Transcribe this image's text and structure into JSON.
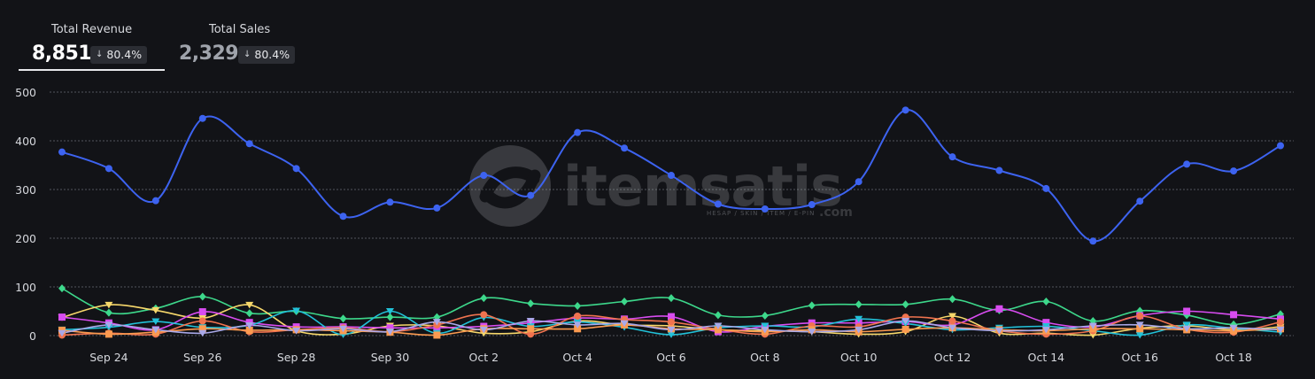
{
  "kpis": [
    {
      "title": "Total Revenue",
      "value": "8,851",
      "change": "80.4%",
      "active": true
    },
    {
      "title": "Total Sales",
      "value": "2,329",
      "change": "80.4%",
      "active": false
    }
  ],
  "watermark": {
    "brand": "itemsatis",
    "tagline": "HESAP / SKIN / ITEM / E-PIN",
    "suffix": ".com"
  },
  "colors": {
    "background": "#121317",
    "grid": "#6a6d75",
    "text": "#d6d8dd"
  },
  "chart_data": {
    "type": "line",
    "ylim": [
      0,
      500
    ],
    "yticks": [
      0,
      100,
      200,
      300,
      400,
      500
    ],
    "grid": true,
    "x": [
      "Sep 23",
      "Sep 24",
      "Sep 25",
      "Sep 26",
      "Sep 27",
      "Sep 28",
      "Sep 29",
      "Sep 30",
      "Oct 1",
      "Oct 2",
      "Oct 3",
      "Oct 4",
      "Oct 5",
      "Oct 6",
      "Oct 7",
      "Oct 8",
      "Oct 9",
      "Oct 10",
      "Oct 11",
      "Oct 12",
      "Oct 13",
      "Oct 14",
      "Oct 15",
      "Oct 16",
      "Oct 17",
      "Oct 18",
      "Oct 19"
    ],
    "xtick_labels": [
      "Sep 24",
      "Sep 26",
      "Sep 28",
      "Sep 30",
      "Oct 2",
      "Oct 4",
      "Oct 6",
      "Oct 8",
      "Oct 10",
      "Oct 12",
      "Oct 14",
      "Oct 16",
      "Oct 18"
    ],
    "series": [
      {
        "color": "#3d63f0",
        "marker": "circle",
        "values": [
          377,
          343,
          277,
          446,
          394,
          343,
          245,
          274,
          262,
          329,
          288,
          417,
          385,
          329,
          270,
          260,
          269,
          316,
          463,
          367,
          339,
          302,
          194,
          276,
          352,
          338,
          390
        ]
      },
      {
        "color": "#3dd88b",
        "marker": "diamond",
        "values": [
          97,
          47,
          56,
          80,
          46,
          50,
          35,
          38,
          38,
          77,
          66,
          61,
          70,
          77,
          42,
          41,
          62,
          64,
          64,
          75,
          52,
          70,
          30,
          51,
          42,
          23,
          44
        ]
      },
      {
        "color": "#f7d86b",
        "marker": "triangle-down",
        "values": [
          37,
          63,
          52,
          36,
          63,
          10,
          3,
          20,
          20,
          5,
          8,
          30,
          22,
          20,
          12,
          10,
          8,
          3,
          8,
          40,
          5,
          5,
          1,
          15,
          20,
          12,
          18
        ]
      },
      {
        "color": "#d84cf0",
        "marker": "square",
        "values": [
          38,
          26,
          12,
          49,
          27,
          18,
          18,
          16,
          16,
          19,
          26,
          36,
          34,
          39,
          8,
          19,
          26,
          26,
          29,
          22,
          55,
          27,
          18,
          41,
          50,
          43,
          34
        ]
      },
      {
        "color": "#22c1d8",
        "marker": "triangle-down",
        "values": [
          12,
          17,
          29,
          17,
          21,
          51,
          2,
          50,
          5,
          37,
          19,
          28,
          17,
          2,
          16,
          20,
          18,
          34,
          25,
          12,
          16,
          19,
          10,
          1,
          22,
          15,
          7
        ]
      },
      {
        "color": "#f0734f",
        "marker": "circle",
        "values": [
          1,
          5,
          3,
          30,
          8,
          12,
          16,
          8,
          22,
          43,
          3,
          40,
          33,
          28,
          13,
          3,
          20,
          18,
          38,
          30,
          10,
          3,
          10,
          40,
          13,
          7,
          28
        ]
      },
      {
        "color": "#fb9a50",
        "marker": "square",
        "values": [
          11,
          3,
          7,
          14,
          11,
          12,
          10,
          7,
          1,
          14,
          14,
          14,
          22,
          14,
          12,
          8,
          12,
          8,
          13,
          16,
          12,
          10,
          14,
          14,
          12,
          10,
          14
        ]
      },
      {
        "color": "#a9a8e8",
        "marker": "triangle-down",
        "values": [
          5,
          22,
          12,
          5,
          21,
          10,
          14,
          8,
          28,
          12,
          30,
          22,
          25,
          12,
          20,
          12,
          8,
          12,
          30,
          16,
          10,
          12,
          20,
          22,
          14,
          16,
          12
        ]
      }
    ]
  }
}
